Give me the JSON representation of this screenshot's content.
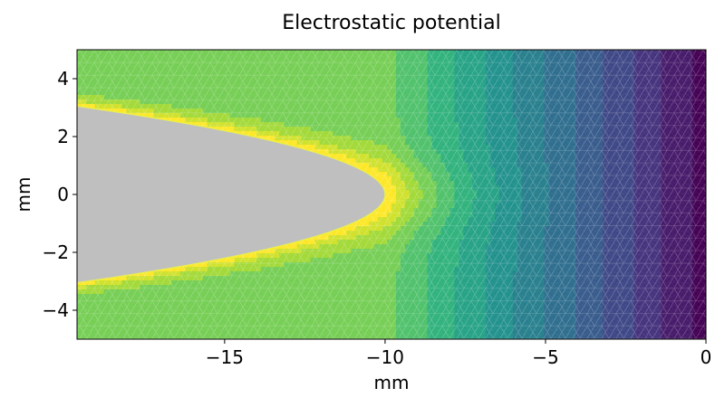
{
  "chart_data": {
    "type": "heatmap",
    "title": "Electrostatic potential",
    "xlabel": "mm",
    "ylabel": "mm",
    "xlim": [
      -19.6,
      0
    ],
    "ylim": [
      -5,
      5
    ],
    "x_ticks": [
      -15,
      -10,
      -5,
      0
    ],
    "x_tick_labels": [
      "−15",
      "−10",
      "−5",
      "0"
    ],
    "y_ticks": [
      -4,
      -2,
      0,
      2,
      4
    ],
    "y_tick_labels": [
      "−4",
      "−2",
      "0",
      "2",
      "4"
    ],
    "colormap": "viridis",
    "colormap_stops": [
      "#440154",
      "#472d7b",
      "#3b528b",
      "#2c728e",
      "#21918c",
      "#28ae80",
      "#5ec962",
      "#addc30",
      "#fde725"
    ],
    "mesh": "triangular",
    "electrode": {
      "shape": "paraboloid",
      "tip_x": -10,
      "edge_x": -19.6,
      "edge_half_height": 3.05,
      "color": "#bfbfbf"
    },
    "grid": false
  }
}
